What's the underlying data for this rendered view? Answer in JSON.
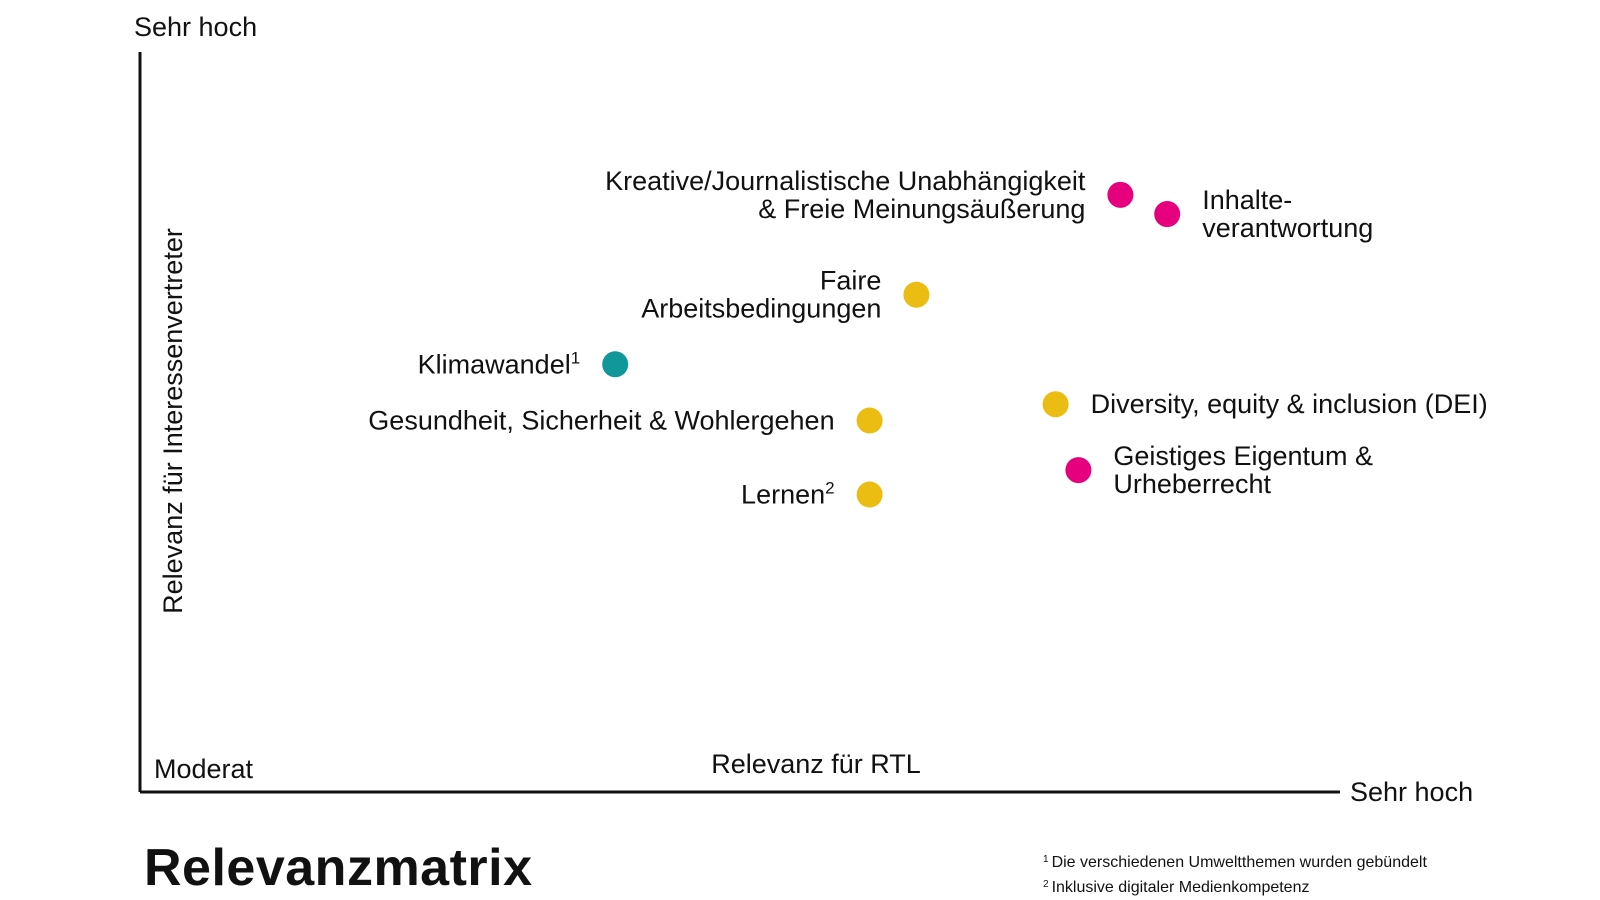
{
  "chart_data": {
    "type": "scatter",
    "title": "Relevanzmatrix",
    "xlabel": "Relevanz für RTL",
    "ylabel": "Relevanz für Interessenvertreter",
    "x_low_label": "Moderat",
    "x_high_label": "Sehr hoch",
    "y_high_label": "Sehr hoch",
    "xlim": [
      0,
      100
    ],
    "ylim": [
      0,
      100
    ],
    "grid": false,
    "colors": {
      "magenta": "#E6007E",
      "yellow": "#EBBC12",
      "teal": "#0F979A",
      "axis": "#111111"
    },
    "points": [
      {
        "id": "kreative",
        "lines": [
          "Kreative/Journalistische Unabhängigkeit",
          "& Freie Meinungsäußerung"
        ],
        "sup": "",
        "x": 81.7,
        "y": 80.7,
        "color": "magenta",
        "label_side": "left"
      },
      {
        "id": "inhalte",
        "lines": [
          "Inhalte-",
          "verantwortung"
        ],
        "sup": "",
        "x": 85.6,
        "y": 78.1,
        "color": "magenta",
        "label_side": "right"
      },
      {
        "id": "faire",
        "lines": [
          "Faire",
          "Arbeitsbedingungen"
        ],
        "sup": "",
        "x": 64.7,
        "y": 67.2,
        "color": "yellow",
        "label_side": "left"
      },
      {
        "id": "klima",
        "lines": [
          "Klimawandel"
        ],
        "sup": "1",
        "x": 39.6,
        "y": 57.8,
        "color": "teal",
        "label_side": "left"
      },
      {
        "id": "diversity",
        "lines": [
          "Diversity, equity & inclusion (DEI)"
        ],
        "sup": "",
        "x": 76.3,
        "y": 52.4,
        "color": "yellow",
        "label_side": "right"
      },
      {
        "id": "gesundheit",
        "lines": [
          "Gesundheit, Sicherheit & Wohlergehen"
        ],
        "sup": "",
        "x": 60.8,
        "y": 50.2,
        "color": "yellow",
        "label_side": "left"
      },
      {
        "id": "geistiges",
        "lines": [
          "Geistiges Eigentum &",
          "Urheberrecht"
        ],
        "sup": "",
        "x": 78.2,
        "y": 43.5,
        "color": "magenta",
        "label_side": "right"
      },
      {
        "id": "lernen",
        "lines": [
          "Lernen"
        ],
        "sup": "2",
        "x": 60.8,
        "y": 40.2,
        "color": "yellow",
        "label_side": "left"
      }
    ]
  },
  "footnotes": [
    {
      "num": "1",
      "text": "Die verschiedenen Umweltthemen wurden gebündelt"
    },
    {
      "num": "2",
      "text": "Inklusive digitaler Medienkompetenz"
    }
  ]
}
